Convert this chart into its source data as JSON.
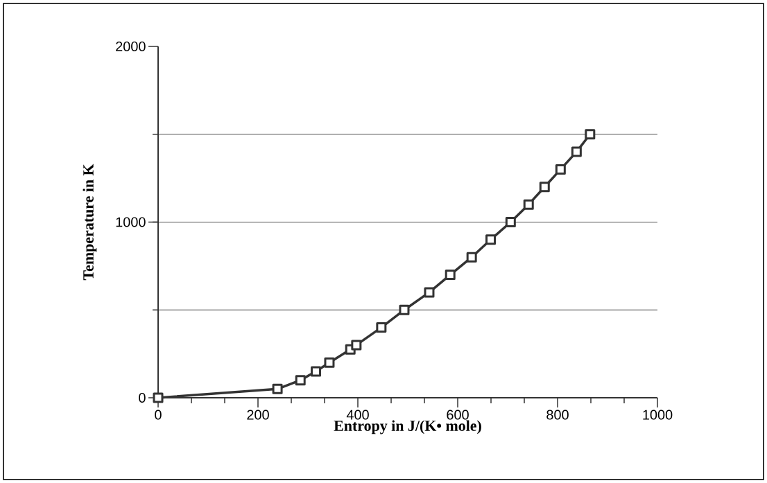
{
  "chart_data": {
    "type": "line",
    "xlabel": "Entropy in J/(K• mole)",
    "ylabel": "Temperature in K",
    "x": [
      0,
      239,
      285,
      316,
      343,
      385,
      397,
      447,
      493,
      543,
      585,
      628,
      666,
      706,
      742,
      774,
      806,
      838,
      865
    ],
    "series": [
      {
        "color": "#333333",
        "values": [
          0,
          50,
          100,
          150,
          200,
          275,
          300,
          400,
          500,
          600,
          700,
          800,
          900,
          1000,
          1100,
          1200,
          1300,
          1400,
          1500
        ]
      }
    ],
    "xlim": [
      0,
      1000
    ],
    "ylim": [
      0,
      2000
    ],
    "xticks": [
      0,
      200,
      400,
      600,
      800,
      1000
    ],
    "yticks": [
      0,
      1000,
      2000
    ],
    "grid": "y",
    "marker": "square",
    "line_style": "solid"
  }
}
